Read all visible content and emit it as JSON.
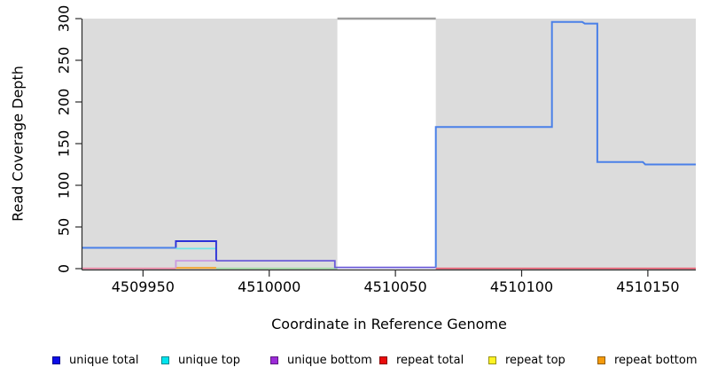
{
  "chart_data": {
    "type": "line",
    "xlabel": "Coordinate in Reference Genome",
    "ylabel": "Read Coverage Depth",
    "xlim": [
      4509926,
      4510169
    ],
    "ylim": [
      0,
      300
    ],
    "x_ticks": [
      4509950,
      4510000,
      4510050,
      4510100,
      4510150
    ],
    "y_ticks": [
      0,
      50,
      100,
      150,
      200,
      250,
      300
    ],
    "plot_bg_color": "#dcdcdc",
    "axis_color": "#2b2b2b",
    "masked_region": {
      "x_start": 4510027,
      "x_end": 4510066,
      "fill": "#ffffff",
      "cap_line_y": 300,
      "cap_line_color": "#9c9c9c"
    },
    "series": [
      {
        "name": "zero-line-left-pink",
        "color": "#ec82a2",
        "width": 1.6,
        "points": [
          [
            4509926,
            0.3
          ],
          [
            4509963,
            0.3
          ]
        ]
      },
      {
        "name": "zero-line-mid-green",
        "color": "#9cd9a0",
        "width": 1.6,
        "points": [
          [
            4509979,
            0.3
          ],
          [
            4510027,
            0.3
          ]
        ]
      },
      {
        "name": "repeat-total-right-red",
        "color": "#e8596e",
        "width": 1.7,
        "points": [
          [
            4510066,
            0.3
          ],
          [
            4510169,
            0.3
          ]
        ]
      },
      {
        "name": "repeat-bottom-orange",
        "color": "#f7a427",
        "width": 1.8,
        "points": [
          [
            4509963,
            0.9
          ],
          [
            4509979,
            0.9
          ]
        ]
      },
      {
        "name": "unique-top-cyan",
        "color": "#72e3e8",
        "width": 1.8,
        "points": [
          [
            4509963,
            24
          ],
          [
            4509979,
            24
          ]
        ]
      },
      {
        "name": "unique-bottom-plum",
        "color": "#c99ae0",
        "width": 1.8,
        "points": [
          [
            4509963,
            1
          ],
          [
            4509963,
            9.5
          ],
          [
            4509979,
            9.5
          ]
        ]
      },
      {
        "name": "unique-bottom-violet",
        "color": "#6a5ad8",
        "width": 1.8,
        "points": [
          [
            4509979,
            9.5
          ],
          [
            4510026,
            9.5
          ],
          [
            4510026,
            1.5
          ],
          [
            4510066,
            1.5
          ]
        ]
      },
      {
        "name": "unique-total-dark-step",
        "color": "#2b31d8",
        "width": 1.9,
        "points": [
          [
            4509963,
            25
          ],
          [
            4509963,
            33
          ],
          [
            4509979,
            33
          ],
          [
            4509979,
            10
          ]
        ]
      },
      {
        "name": "unique-total-left",
        "color": "#4a80e8",
        "width": 2,
        "points": [
          [
            4509926,
            25
          ],
          [
            4509963,
            25
          ]
        ]
      },
      {
        "name": "unique-total-right",
        "color": "#4a80e8",
        "width": 2,
        "points": [
          [
            4510066,
            1.5
          ],
          [
            4510066,
            170
          ],
          [
            4510112,
            170
          ],
          [
            4510112,
            296
          ],
          [
            4510124,
            296
          ],
          [
            4510125,
            294
          ],
          [
            4510130,
            294
          ],
          [
            4510130,
            128
          ],
          [
            4510148,
            128
          ],
          [
            4510149,
            125
          ],
          [
            4510169,
            125
          ]
        ]
      }
    ],
    "legend": [
      {
        "label": "unique total",
        "color": "#0d0de8"
      },
      {
        "label": "unique top",
        "color": "#00e4ee"
      },
      {
        "label": "unique bottom",
        "color": "#9c2bd8"
      },
      {
        "label": "repeat total",
        "color": "#ea0c0c"
      },
      {
        "label": "repeat top",
        "color": "#fef324"
      },
      {
        "label": "repeat bottom",
        "color": "#f59b0c"
      }
    ]
  }
}
